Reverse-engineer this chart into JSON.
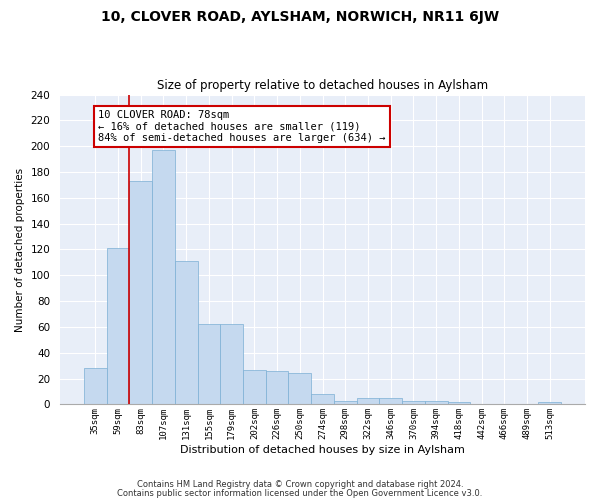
{
  "title": "10, CLOVER ROAD, AYLSHAM, NORWICH, NR11 6JW",
  "subtitle": "Size of property relative to detached houses in Aylsham",
  "xlabel": "Distribution of detached houses by size in Aylsham",
  "ylabel": "Number of detached properties",
  "bar_color": "#c5d9ef",
  "bar_edge_color": "#7bafd4",
  "bins": [
    "35sqm",
    "59sqm",
    "83sqm",
    "107sqm",
    "131sqm",
    "155sqm",
    "179sqm",
    "202sqm",
    "226sqm",
    "250sqm",
    "274sqm",
    "298sqm",
    "322sqm",
    "346sqm",
    "370sqm",
    "394sqm",
    "418sqm",
    "442sqm",
    "466sqm",
    "489sqm",
    "513sqm"
  ],
  "values": [
    28,
    121,
    173,
    197,
    111,
    62,
    62,
    27,
    26,
    24,
    8,
    3,
    5,
    5,
    3,
    3,
    2,
    0,
    0,
    0,
    2
  ],
  "ylim": [
    0,
    240
  ],
  "yticks": [
    0,
    20,
    40,
    60,
    80,
    100,
    120,
    140,
    160,
    180,
    200,
    220,
    240
  ],
  "vline_color": "#cc0000",
  "annotation_text": "10 CLOVER ROAD: 78sqm\n← 16% of detached houses are smaller (119)\n84% of semi-detached houses are larger (634) →",
  "annotation_box_color": "#ffffff",
  "annotation_box_edge": "#cc0000",
  "plot_bg_color": "#e8eef8",
  "footer_line1": "Contains HM Land Registry data © Crown copyright and database right 2024.",
  "footer_line2": "Contains public sector information licensed under the Open Government Licence v3.0."
}
